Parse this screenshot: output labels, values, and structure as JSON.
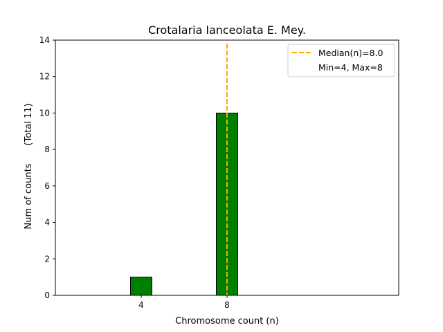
{
  "chart_data": {
    "type": "bar",
    "title": "Crotalaria lanceolata E. Mey.",
    "xlabel": "Chromosome count (n)",
    "ylabel": "Num of counts",
    "ylabel_total": "(Total 11)",
    "x": [
      4,
      8
    ],
    "values": [
      1,
      10
    ],
    "bar_width": 1.0,
    "xlim": [
      0,
      16
    ],
    "ylim": [
      0,
      14
    ],
    "xticks": [
      4,
      8
    ],
    "yticks": [
      0,
      2,
      4,
      6,
      8,
      10,
      12,
      14
    ],
    "baseline_extent": [
      0,
      11.5
    ],
    "median": 8.0,
    "median_label": "Median(n)=8.0",
    "range_label": "Min=4, Max=8",
    "legend_position": "top-right",
    "grid": false,
    "colors": {
      "bar_fill": "#008000",
      "bar_edge": "#000000",
      "median_line": "#FFA500"
    }
  }
}
